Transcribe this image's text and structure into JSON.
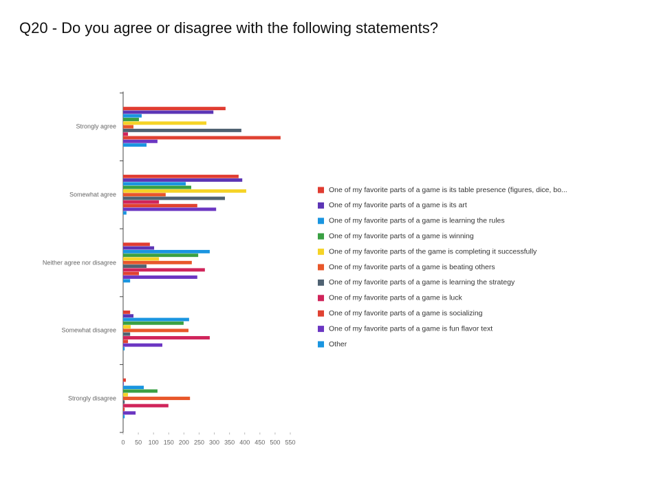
{
  "chart_data": {
    "type": "hbar",
    "title": "Q20 - Do you agree or disagree with the following statements?",
    "categories": [
      "Strongly agree",
      "Somewhat agree",
      "Neither agree nor disagree",
      "Somewhat disagree",
      "Strongly disagree"
    ],
    "xlim": [
      0,
      550
    ],
    "xticks": [
      0,
      50,
      100,
      150,
      200,
      250,
      300,
      350,
      400,
      450,
      500,
      550
    ],
    "series": [
      {
        "name": "One of my favorite parts of a game is its table presence (figures, dice, bo...",
        "color": "#e03c31",
        "values": [
          337,
          380,
          88,
          23,
          9
        ]
      },
      {
        "name": "One of my favorite parts of a game is its art",
        "color": "#5c35b5",
        "values": [
          297,
          392,
          102,
          34,
          2
        ]
      },
      {
        "name": "One of my favorite parts of a game is learning the rules",
        "color": "#1a95e0",
        "values": [
          61,
          206,
          285,
          217,
          68
        ]
      },
      {
        "name": "One of my favorite parts of a game is winning",
        "color": "#3aa043",
        "values": [
          52,
          224,
          247,
          199,
          113
        ]
      },
      {
        "name": "One of my favorite parts of the game is completing it successfully",
        "color": "#f5d327",
        "values": [
          274,
          405,
          118,
          25,
          16
        ]
      },
      {
        "name": "One of my favorite parts of a game is beating others",
        "color": "#e8572a",
        "values": [
          34,
          140,
          226,
          215,
          220
        ]
      },
      {
        "name": "One of my favorite parts of a game is learning the strategy",
        "color": "#4f6272",
        "values": [
          389,
          335,
          77,
          23,
          5
        ]
      },
      {
        "name": "One of my favorite parts of a game is luck",
        "color": "#d0245a",
        "values": [
          16,
          118,
          269,
          285,
          149
        ]
      },
      {
        "name": "One of my favorite parts of a game is socializing",
        "color": "#e04232",
        "values": [
          518,
          244,
          52,
          16,
          5
        ]
      },
      {
        "name": "One of my favorite parts of a game is fun flavor text",
        "color": "#6b36c2",
        "values": [
          113,
          306,
          244,
          129,
          41
        ]
      },
      {
        "name": "Other",
        "color": "#1a95e0",
        "values": [
          77,
          11,
          23,
          5,
          5
        ]
      }
    ]
  }
}
